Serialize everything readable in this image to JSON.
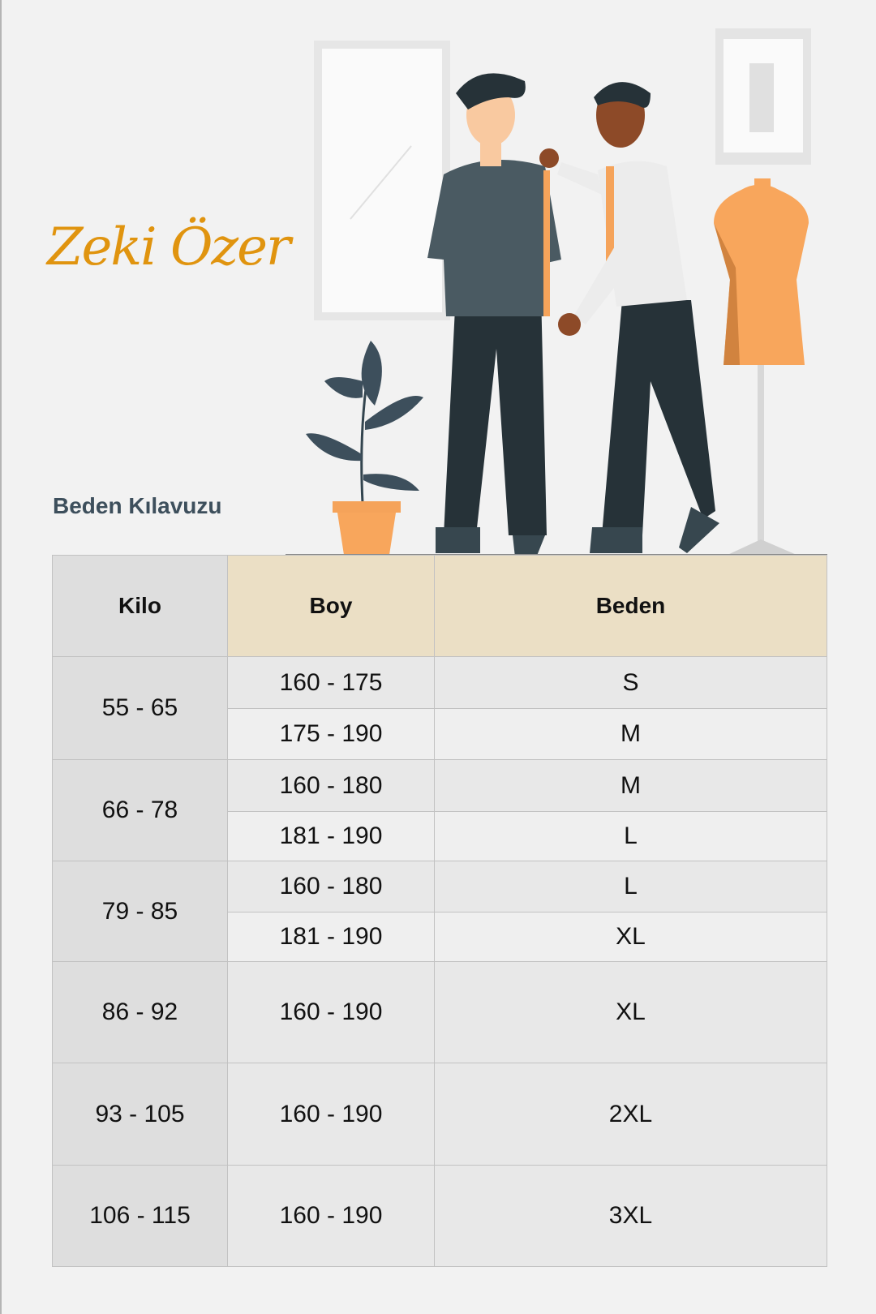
{
  "brand": {
    "logo_text": "Zeki Özer",
    "color": "#e0940f"
  },
  "title": "Beden Kılavuzu",
  "table": {
    "headers": {
      "kilo": "Kilo",
      "boy": "Boy",
      "beden": "Beden"
    },
    "groups": [
      {
        "kilo": "55 - 65",
        "rows": [
          {
            "boy": "160 - 175",
            "beden": "S"
          },
          {
            "boy": "175 - 190",
            "beden": "M"
          }
        ]
      },
      {
        "kilo": "66 - 78",
        "rows": [
          {
            "boy": "160 - 180",
            "beden": "M"
          },
          {
            "boy": "181 - 190",
            "beden": "L"
          }
        ]
      },
      {
        "kilo": "79 - 85",
        "rows": [
          {
            "boy": "160 - 180",
            "beden": "L"
          },
          {
            "boy": "181 - 190",
            "beden": "XL"
          }
        ]
      },
      {
        "kilo": "86 - 92",
        "rows": [
          {
            "boy": "160 - 190",
            "beden": "XL"
          }
        ]
      },
      {
        "kilo": "93 - 105",
        "rows": [
          {
            "boy": "160 - 190",
            "beden": "2XL"
          }
        ]
      },
      {
        "kilo": "106 - 115",
        "rows": [
          {
            "boy": "160 - 190",
            "beden": "3XL"
          }
        ]
      }
    ]
  },
  "colors": {
    "header_cream": "#ebdfc5",
    "kilo_column": "#dedede",
    "title": "#3d4f5c"
  }
}
